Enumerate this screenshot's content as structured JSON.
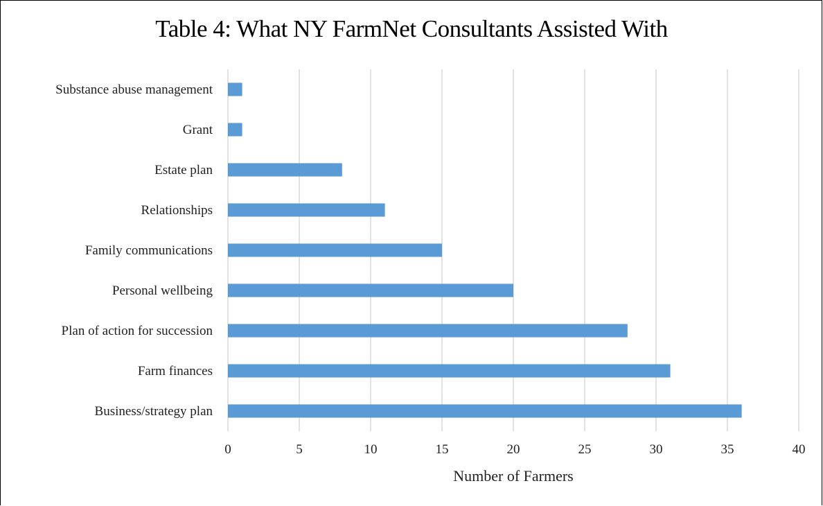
{
  "chart_data": {
    "type": "bar",
    "orientation": "horizontal",
    "title": "Table 4: What NY FarmNet Consultants Assisted With",
    "xlabel": "Number of Farmers",
    "ylabel": "",
    "categories": [
      "Business/strategy plan",
      "Farm finances",
      "Plan of action for succession",
      "Personal wellbeing",
      "Family communications",
      "Relationships",
      "Estate plan",
      "Grant",
      "Substance abuse management"
    ],
    "values": [
      36,
      31,
      28,
      20,
      15,
      11,
      8,
      1,
      1
    ],
    "xlim": [
      0,
      40
    ],
    "xticks": [
      "0",
      "5",
      "10",
      "15",
      "20",
      "25",
      "30",
      "35",
      "40"
    ],
    "grid": true,
    "legend": "none",
    "bar_color": "#5b9bd5",
    "grid_color": "#d9d9d9"
  }
}
